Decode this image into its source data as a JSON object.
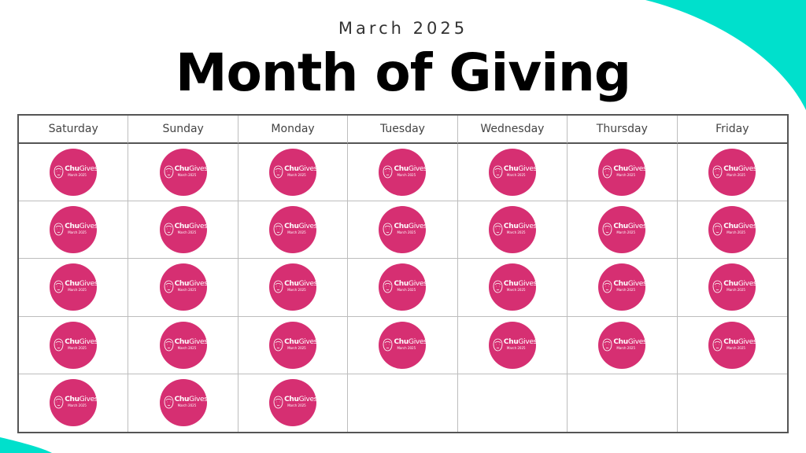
{
  "header": {
    "subtitle": "March 2025",
    "title": "Month of Giving"
  },
  "calendar": {
    "weekdays": [
      "Saturday",
      "Sunday",
      "Monday",
      "Tuesday",
      "Wednesday",
      "Thursday",
      "Friday"
    ],
    "total_days": 31,
    "badge": {
      "brand_bold": "Chu",
      "brand_light": "Gives",
      "subtext": "March 2025",
      "color": "#d62f72",
      "icon": "lion-face-icon"
    }
  },
  "colors": {
    "accent": "#00e0cc",
    "badge": "#d62f72"
  }
}
